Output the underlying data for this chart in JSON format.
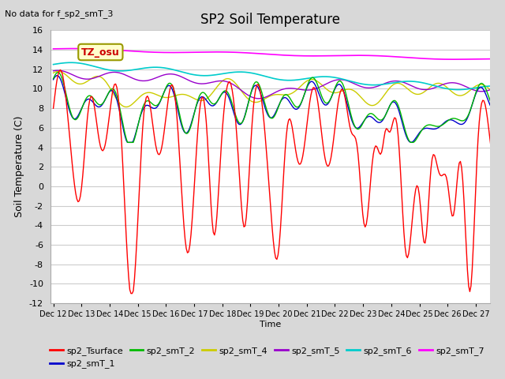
{
  "title": "SP2 Soil Temperature",
  "subtitle": "No data for f_sp2_smT_3",
  "xlabel": "Time",
  "ylabel": "Soil Temperature (C)",
  "ylim": [
    -12,
    16
  ],
  "yticks": [
    -12,
    -10,
    -8,
    -6,
    -4,
    -2,
    0,
    2,
    4,
    6,
    8,
    10,
    12,
    14,
    16
  ],
  "fig_bg_color": "#d8d8d8",
  "plot_bg_color": "#ffffff",
  "tz_label": "TZ_osu",
  "colors": {
    "sp2_Tsurface": "#ff0000",
    "sp2_smT_1": "#0000cc",
    "sp2_smT_2": "#00bb00",
    "sp2_smT_4": "#cccc00",
    "sp2_smT_5": "#9900cc",
    "sp2_smT_6": "#00cccc",
    "sp2_smT_7": "#ff00ff"
  },
  "xticklabels": [
    "Dec 12",
    "Dec 13",
    "Dec 14",
    "Dec 15",
    "Dec 16",
    "Dec 17",
    "Dec 18",
    "Dec 19",
    "Dec 20",
    "Dec 21",
    "Dec 22",
    "Dec 23",
    "Dec 24",
    "Dec 25",
    "Dec 26",
    "Dec 27"
  ]
}
